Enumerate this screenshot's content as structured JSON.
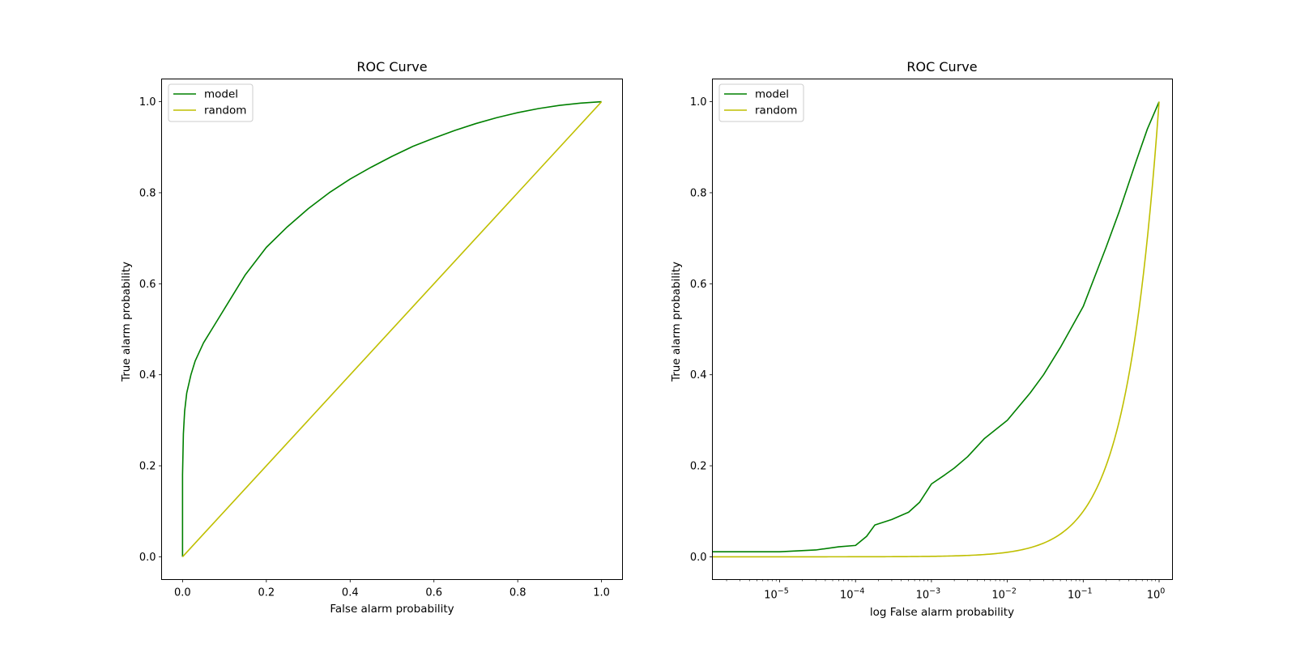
{
  "chart_data": [
    {
      "type": "line",
      "title": "ROC Curve",
      "xlabel": "False alarm probability",
      "ylabel": "True alarm probability",
      "xscale": "linear",
      "xlim": [
        -0.05,
        1.05
      ],
      "ylim": [
        -0.05,
        1.05
      ],
      "xticks": [
        0.0,
        0.2,
        0.4,
        0.6,
        0.8,
        1.0
      ],
      "xtick_labels": [
        "0.0",
        "0.2",
        "0.4",
        "0.6",
        "0.8",
        "1.0"
      ],
      "yticks": [
        0.0,
        0.2,
        0.4,
        0.6,
        0.8,
        1.0
      ],
      "ytick_labels": [
        "0.0",
        "0.2",
        "0.4",
        "0.6",
        "0.8",
        "1.0"
      ],
      "legend_position": "top-left",
      "series": [
        {
          "name": "model",
          "color": "#008000",
          "x": [
            0.0,
            0.0,
            0.002,
            0.005,
            0.01,
            0.02,
            0.03,
            0.05,
            0.07,
            0.1,
            0.15,
            0.2,
            0.25,
            0.3,
            0.35,
            0.4,
            0.45,
            0.5,
            0.55,
            0.6,
            0.65,
            0.7,
            0.75,
            0.8,
            0.85,
            0.9,
            0.95,
            1.0
          ],
          "y": [
            0.0,
            0.18,
            0.27,
            0.32,
            0.36,
            0.4,
            0.43,
            0.47,
            0.5,
            0.545,
            0.62,
            0.68,
            0.725,
            0.765,
            0.8,
            0.83,
            0.856,
            0.88,
            0.902,
            0.92,
            0.937,
            0.952,
            0.965,
            0.976,
            0.985,
            0.992,
            0.997,
            1.0
          ]
        },
        {
          "name": "random",
          "color": "#bfbf00",
          "x": [
            0.0,
            1.0
          ],
          "y": [
            0.0,
            1.0
          ]
        }
      ]
    },
    {
      "type": "line",
      "title": "ROC Curve",
      "xlabel": "log False alarm probability",
      "ylabel": "True alarm probability",
      "xscale": "log",
      "xlim": [
        1.3e-06,
        1.5
      ],
      "ylim": [
        -0.05,
        1.05
      ],
      "xticks": [
        1e-05,
        0.0001,
        0.001,
        0.01,
        0.1,
        1
      ],
      "xtick_labels": [
        {
          "base": "10",
          "exp": "−5"
        },
        {
          "base": "10",
          "exp": "−4"
        },
        {
          "base": "10",
          "exp": "−3"
        },
        {
          "base": "10",
          "exp": "−2"
        },
        {
          "base": "10",
          "exp": "−1"
        },
        {
          "base": "10",
          "exp": "0"
        }
      ],
      "yticks": [
        0.0,
        0.2,
        0.4,
        0.6,
        0.8,
        1.0
      ],
      "ytick_labels": [
        "0.0",
        "0.2",
        "0.4",
        "0.6",
        "0.8",
        "1.0"
      ],
      "legend_position": "top-left",
      "series": [
        {
          "name": "model",
          "color": "#008000",
          "x": [
            1.3e-06,
            1e-05,
            3e-05,
            6e-05,
            0.0001,
            0.00014,
            0.00018,
            0.0003,
            0.0005,
            0.0007,
            0.001,
            0.0015,
            0.002,
            0.003,
            0.005,
            0.01,
            0.02,
            0.03,
            0.05,
            0.1,
            0.2,
            0.3,
            0.5,
            0.7,
            1.0
          ],
          "y": [
            0.011,
            0.011,
            0.015,
            0.022,
            0.025,
            0.045,
            0.07,
            0.082,
            0.098,
            0.12,
            0.16,
            0.18,
            0.195,
            0.22,
            0.26,
            0.3,
            0.36,
            0.4,
            0.46,
            0.55,
            0.68,
            0.76,
            0.87,
            0.94,
            1.0
          ]
        },
        {
          "name": "random",
          "color": "#bfbf00",
          "x": [
            1.3e-06,
            0.0001,
            0.001,
            0.003,
            0.01,
            0.02,
            0.03,
            0.05,
            0.07,
            0.1,
            0.15,
            0.2,
            0.3,
            0.4,
            0.5,
            0.6,
            0.7,
            0.8,
            0.9,
            1.0
          ],
          "y": [
            1.3e-06,
            0.0001,
            0.001,
            0.003,
            0.01,
            0.02,
            0.03,
            0.05,
            0.07,
            0.1,
            0.15,
            0.2,
            0.3,
            0.4,
            0.5,
            0.6,
            0.7,
            0.8,
            0.9,
            1.0
          ]
        }
      ]
    }
  ]
}
